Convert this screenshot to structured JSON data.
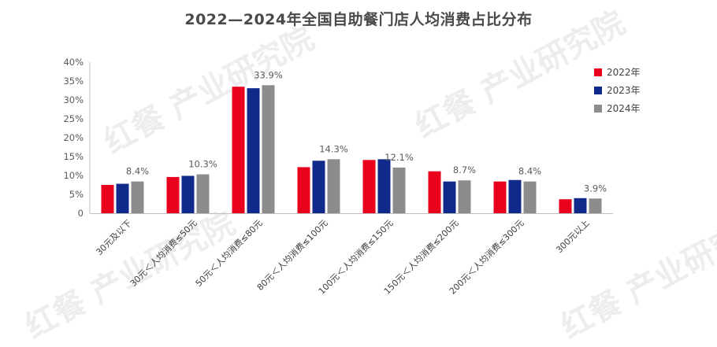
{
  "watermark": "红餐 产业研究院",
  "chart_data": {
    "type": "bar",
    "title": "2022—2024年全国自助餐门店人均消费占比分布",
    "categories": [
      "30元及以下",
      "30元＜人均消费≤50元",
      "50元＜人均消费≤80元",
      "80元＜人均消费≤100元",
      "100元＜人均消费≤150元",
      "150元＜人均消费≤200元",
      "200元＜人均消费≤300元",
      "300元以上"
    ],
    "series": [
      {
        "name": "2022年",
        "color": "#e8001c",
        "values": [
          7.5,
          9.6,
          33.5,
          12.2,
          14.1,
          11.1,
          8.4,
          3.7
        ]
      },
      {
        "name": "2023年",
        "color": "#0f2a8a",
        "values": [
          7.8,
          9.9,
          33.1,
          13.9,
          14.3,
          8.4,
          8.8,
          4.0
        ]
      },
      {
        "name": "2024年",
        "color": "#8c8c8c",
        "values": [
          8.4,
          10.3,
          33.9,
          14.3,
          12.1,
          8.7,
          8.4,
          3.9
        ]
      }
    ],
    "data_labels": [
      "8.4%",
      "10.3%",
      "33.9%",
      "14.3%",
      "12.1%",
      "8.7%",
      "8.4%",
      "3.9%"
    ],
    "y_ticks": [
      "0",
      "5%",
      "10%",
      "15%",
      "20%",
      "25%",
      "30%",
      "35%",
      "40%"
    ],
    "ylim": [
      0,
      40
    ],
    "xlabel": "",
    "ylabel": "",
    "legend_position": "right"
  }
}
